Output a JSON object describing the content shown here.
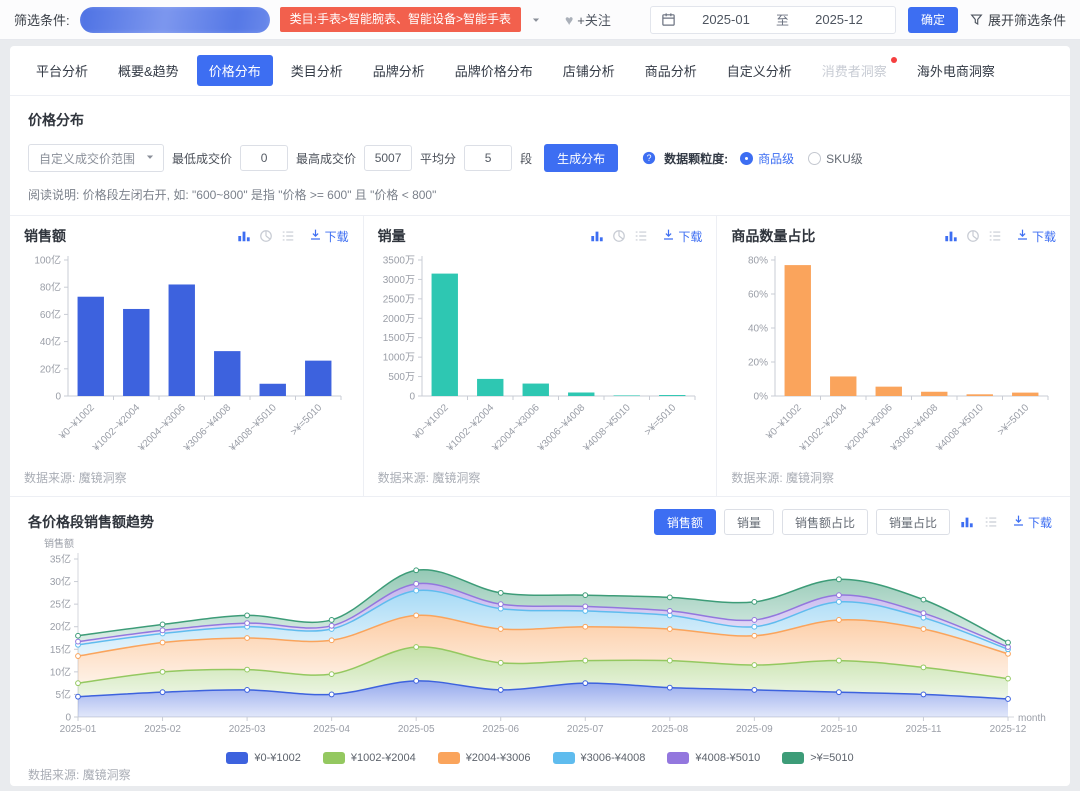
{
  "colors": {
    "accent": "#3D6EF2",
    "tag_red": "#F2604D",
    "badge_red": "#F53F3F"
  },
  "topbar": {
    "filter_label": "筛选条件:",
    "category_tag": "类目:手表>智能腕表、智能设备>智能手表",
    "follow_label": "+关注",
    "date_start": "2025-01",
    "date_to_label": "至",
    "date_end": "2025-12",
    "confirm_button": "确定",
    "expand_filters_label": "展开筛选条件"
  },
  "tabs": [
    {
      "label": "平台分析",
      "state": "normal"
    },
    {
      "label": "概要&趋势",
      "state": "normal"
    },
    {
      "label": "价格分布",
      "state": "active"
    },
    {
      "label": "类目分析",
      "state": "normal"
    },
    {
      "label": "品牌分析",
      "state": "normal"
    },
    {
      "label": "品牌价格分布",
      "state": "normal"
    },
    {
      "label": "店铺分析",
      "state": "normal"
    },
    {
      "label": "商品分析",
      "state": "normal"
    },
    {
      "label": "自定义分析",
      "state": "normal"
    },
    {
      "label": "消费者洞察",
      "state": "disabled",
      "badge": true
    },
    {
      "label": "海外电商洞察",
      "state": "normal"
    }
  ],
  "price_section": {
    "title": "价格分布",
    "range_select": "自定义成交价范围",
    "min_price_label": "最低成交价",
    "min_price_value": "0",
    "max_price_label": "最高成交价",
    "max_price_value": "5007",
    "split_label": "平均分",
    "split_value": "5",
    "split_suffix": "段",
    "generate_button": "生成分布",
    "granularity_label": "数据颗粒度:",
    "granularity_options": [
      {
        "label": "商品级",
        "selected": true
      },
      {
        "label": "SKU级",
        "selected": false
      }
    ],
    "note": "阅读说明: 价格段左闭右开, 如: \"600~800\" 是指 \"价格 >= 600\" 且 \"价格 < 800\""
  },
  "panel_ui": {
    "download_label": "下载",
    "source": "数据来源: 魔镜洞察"
  },
  "trend": {
    "title": "各价格段销售额趋势",
    "buttons": [
      {
        "label": "销售额",
        "active": true
      },
      {
        "label": "销量",
        "active": false
      },
      {
        "label": "销售额占比",
        "active": false
      },
      {
        "label": "销量占比",
        "active": false
      }
    ],
    "source": "数据来源: 魔镜洞察"
  },
  "chart_data": [
    {
      "type": "bar",
      "title": "销售额",
      "categories": [
        "¥0~¥1002",
        "¥1002~¥2004",
        "¥2004~¥3006",
        "¥3006~¥4008",
        "¥4008~¥5010",
        ">¥=5010"
      ],
      "values": [
        73,
        64,
        82,
        33,
        9,
        26
      ],
      "unit": "亿",
      "ylim": [
        0,
        100
      ],
      "yticks": [
        [
          0,
          "0"
        ],
        [
          20,
          "20亿"
        ],
        [
          40,
          "40亿"
        ],
        [
          60,
          "60亿"
        ],
        [
          80,
          "80亿"
        ],
        [
          100,
          "100亿"
        ]
      ],
      "color": "#3D62DE",
      "grid": false
    },
    {
      "type": "bar",
      "title": "销量",
      "categories": [
        "¥0~¥1002",
        "¥1002~¥2004",
        "¥2004~¥3006",
        "¥3006~¥4008",
        "¥4008~¥5010",
        ">¥=5010"
      ],
      "values": [
        3150,
        440,
        320,
        90,
        15,
        25
      ],
      "unit": "万",
      "ylim": [
        0,
        3500
      ],
      "yticks": [
        [
          0,
          "0"
        ],
        [
          500,
          "500万"
        ],
        [
          1000,
          "1000万"
        ],
        [
          1500,
          "1500万"
        ],
        [
          2000,
          "2000万"
        ],
        [
          2500,
          "2500万"
        ],
        [
          3000,
          "3000万"
        ],
        [
          3500,
          "3500万"
        ]
      ],
      "color": "#2EC7B2",
      "grid": false
    },
    {
      "type": "bar",
      "title": "商品数量占比",
      "categories": [
        "¥0~¥1002",
        "¥1002~¥2004",
        "¥2004~¥3006",
        "¥3006~¥4008",
        "¥4008~¥5010",
        ">¥=5010"
      ],
      "values": [
        77,
        11.5,
        5.5,
        2.5,
        1,
        2
      ],
      "unit": "%",
      "ylim": [
        0,
        80
      ],
      "yticks": [
        [
          0,
          "0%"
        ],
        [
          20,
          "20%"
        ],
        [
          40,
          "40%"
        ],
        [
          60,
          "60%"
        ],
        [
          80,
          "80%"
        ]
      ],
      "color": "#FAA45C",
      "grid": false
    },
    {
      "type": "area",
      "stacked": true,
      "title": "各价格段销售额趋势",
      "ylabel": "销售额",
      "xlabel": "month",
      "unit": "亿",
      "x": [
        "2025-01",
        "2025-02",
        "2025-03",
        "2025-04",
        "2025-05",
        "2025-06",
        "2025-07",
        "2025-08",
        "2025-09",
        "2025-10",
        "2025-11",
        "2025-12"
      ],
      "ylim": [
        0,
        35
      ],
      "yticks": [
        [
          0,
          "0"
        ],
        [
          5,
          "5亿"
        ],
        [
          10,
          "10亿"
        ],
        [
          15,
          "15亿"
        ],
        [
          20,
          "20亿"
        ],
        [
          25,
          "25亿"
        ],
        [
          30,
          "30亿"
        ],
        [
          35,
          "35亿"
        ]
      ],
      "legend_position": "bottom",
      "series": [
        {
          "name": "¥0-¥1002",
          "color": "#3D62DE",
          "values": [
            4.5,
            5.5,
            6.0,
            5.0,
            8.0,
            6.0,
            7.5,
            6.5,
            6.0,
            5.5,
            5.0,
            4.0
          ]
        },
        {
          "name": "¥1002-¥2004",
          "color": "#94C860",
          "values": [
            3.0,
            4.5,
            4.5,
            4.5,
            7.5,
            6.0,
            5.0,
            6.0,
            5.5,
            7.0,
            6.0,
            4.5
          ]
        },
        {
          "name": "¥2004-¥3006",
          "color": "#FAA45C",
          "values": [
            6.0,
            6.5,
            7.0,
            7.5,
            7.0,
            7.5,
            7.5,
            7.0,
            6.5,
            9.0,
            8.5,
            5.5
          ]
        },
        {
          "name": "¥3006-¥4008",
          "color": "#5FBCEE",
          "values": [
            2.5,
            2.0,
            2.5,
            2.5,
            5.5,
            4.5,
            3.5,
            3.0,
            2.0,
            4.0,
            2.5,
            1.0
          ]
        },
        {
          "name": "¥4008-¥5010",
          "color": "#9377DE",
          "values": [
            0.7,
            0.7,
            0.8,
            0.7,
            1.5,
            1.0,
            1.0,
            1.0,
            1.5,
            1.5,
            1.0,
            0.5
          ]
        },
        {
          "name": ">¥=5010",
          "color": "#3D9C78",
          "values": [
            1.3,
            1.3,
            1.7,
            1.3,
            3.0,
            2.5,
            2.5,
            3.0,
            4.0,
            3.5,
            3.0,
            1.0
          ]
        }
      ]
    }
  ]
}
